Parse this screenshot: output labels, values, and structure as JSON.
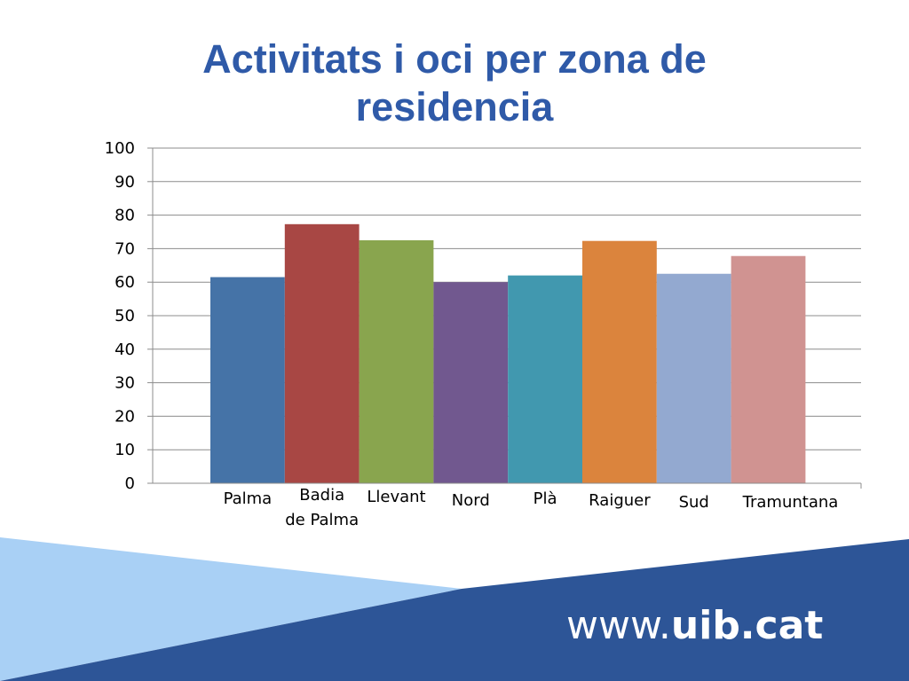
{
  "chart_data": {
    "type": "bar",
    "title": "Activitats i oci per zona de residencia",
    "categories": [
      "Palma",
      "Badia de Palma",
      "Llevant",
      "Nord",
      "Plà",
      "Raiguer",
      "Sud",
      "Tramuntana"
    ],
    "category_lines": [
      [
        "Palma"
      ],
      [
        "Badia",
        "de Palma"
      ],
      [
        "Llevant"
      ],
      [
        "Nord"
      ],
      [
        "Plà"
      ],
      [
        "Raiguer"
      ],
      [
        "Sud"
      ],
      [
        "Tramuntana"
      ]
    ],
    "values": [
      61.5,
      77.3,
      72.5,
      60,
      62,
      72.3,
      62.5,
      67.8
    ],
    "colors": [
      "#4573a7",
      "#a84744",
      "#89a54e",
      "#71588f",
      "#4198af",
      "#db843d",
      "#93a9d0",
      "#d09391"
    ],
    "ylim": [
      0,
      100
    ],
    "yticks": [
      0,
      10,
      20,
      30,
      40,
      50,
      60,
      70,
      80,
      90,
      100
    ],
    "xlabel": "",
    "ylabel": "",
    "grid": true,
    "legend": "none"
  },
  "footer": {
    "url_prefix": "www.",
    "url_bold": "uib.cat"
  },
  "colors": {
    "title": "#2f5aa8",
    "footer_dark": "#2d5597",
    "footer_light": "#a9d0f5",
    "gridline": "#8c8c8c"
  }
}
